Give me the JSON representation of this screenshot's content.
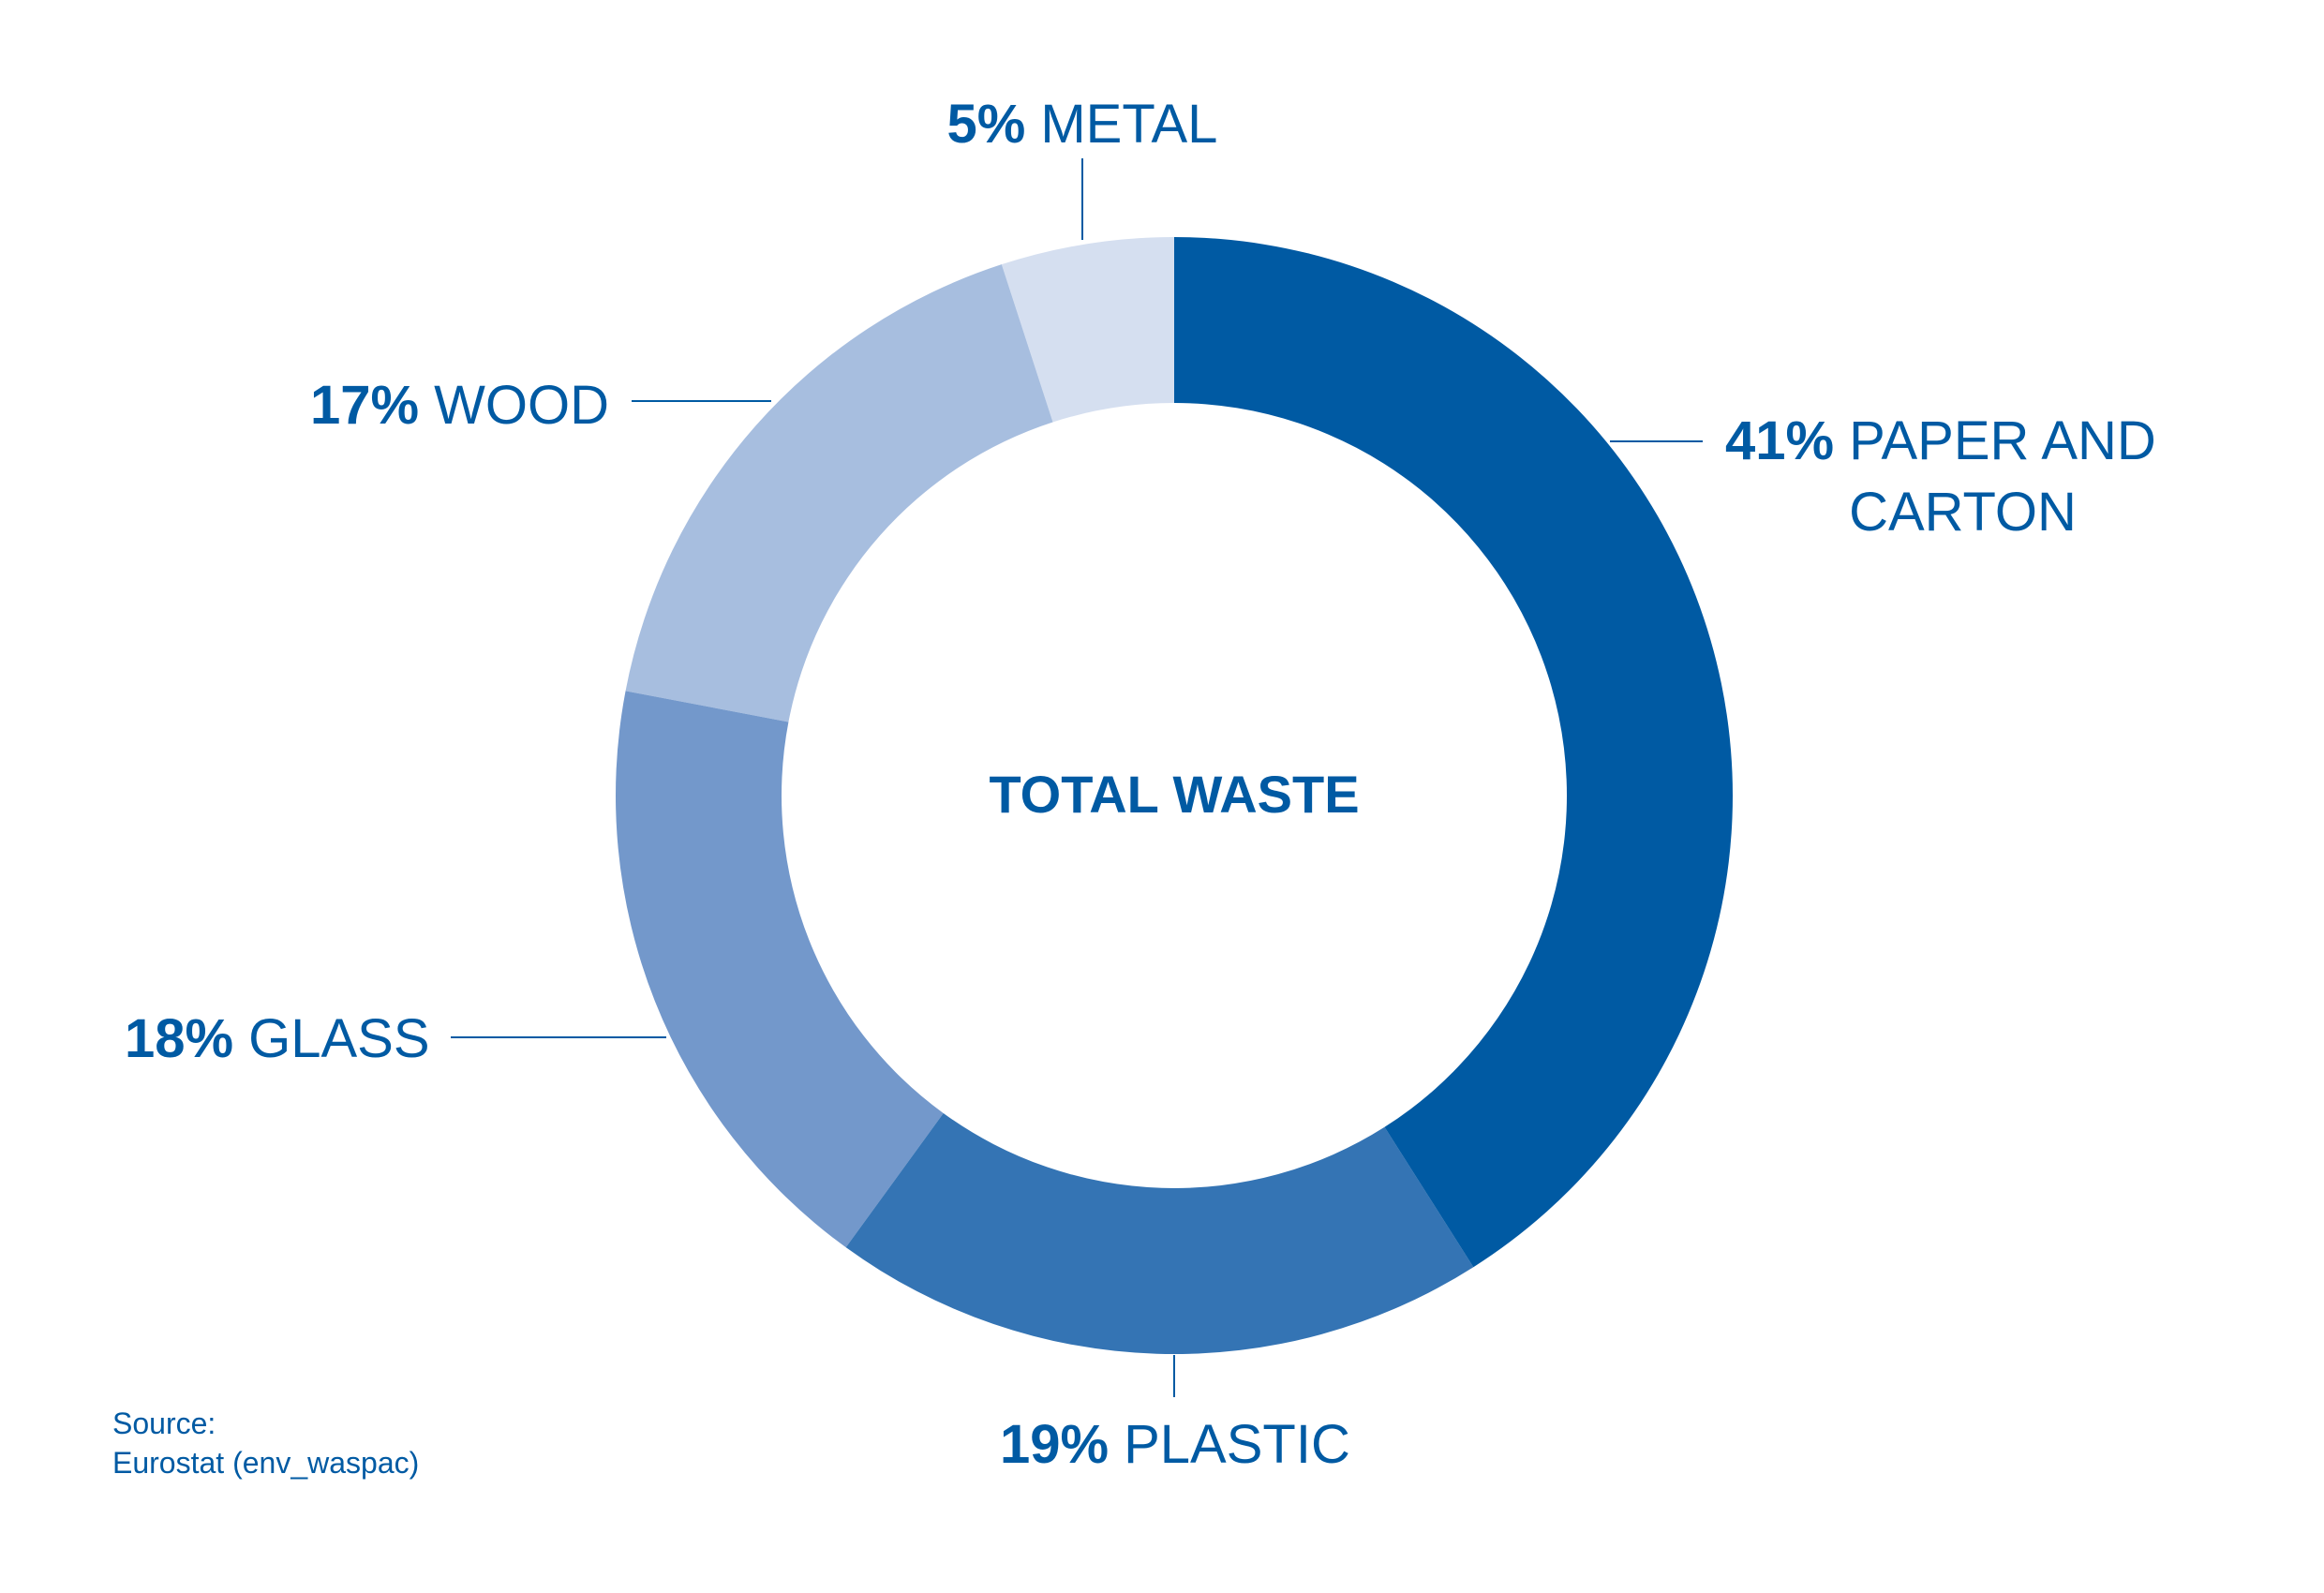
{
  "chart_data": {
    "type": "donut",
    "title": "TOTAL WASTE",
    "categories": [
      "PAPER AND CARTON",
      "PLASTIC",
      "GLASS",
      "WOOD",
      "METAL"
    ],
    "values": [
      41,
      19,
      18,
      17,
      5
    ],
    "value_labels": [
      "41%",
      "19%",
      "18%",
      "17%",
      "5%"
    ],
    "colors": [
      "#005aa3",
      "#3474b4",
      "#7398cb",
      "#a7bedf",
      "#d5dff0"
    ],
    "source_label": "Source:",
    "source": "Eurostat (env_waspac)"
  }
}
